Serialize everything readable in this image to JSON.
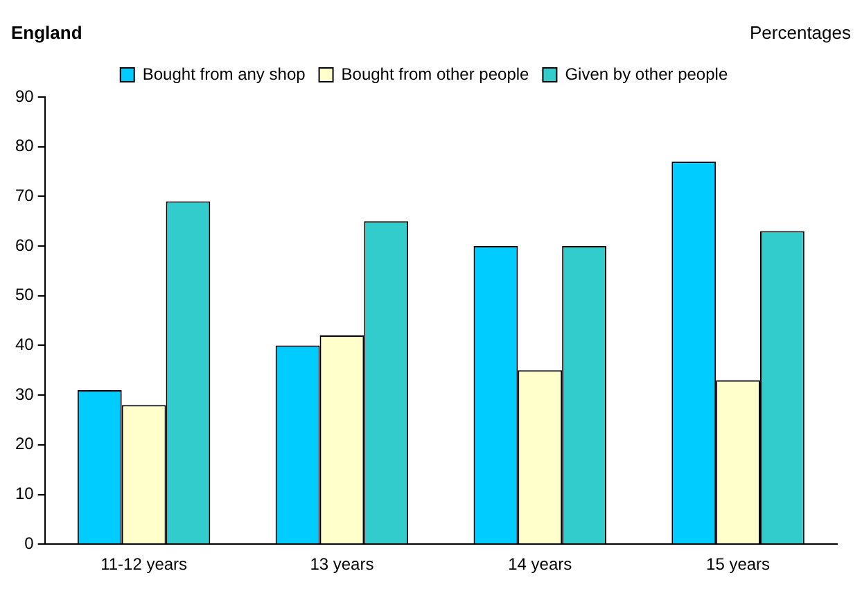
{
  "chart_data": {
    "type": "bar",
    "title": "England",
    "annotations": [
      "Percentages"
    ],
    "categories": [
      "11-12 years",
      "13 years",
      "14 years",
      "15 years"
    ],
    "series": [
      {
        "name": "Bought from any shop",
        "color": "#00ccff",
        "values": [
          31,
          40,
          60,
          77
        ]
      },
      {
        "name": "Bought from other people",
        "color": "#ffffcc",
        "values": [
          28,
          42,
          35,
          33
        ]
      },
      {
        "name": "Given by other people",
        "color": "#33cccc",
        "values": [
          69,
          65,
          60,
          63
        ]
      }
    ],
    "ylim": [
      0,
      90
    ],
    "yticks": [
      0,
      10,
      20,
      30,
      40,
      50,
      60,
      70,
      80,
      90
    ],
    "grid": false,
    "legend": "top"
  }
}
